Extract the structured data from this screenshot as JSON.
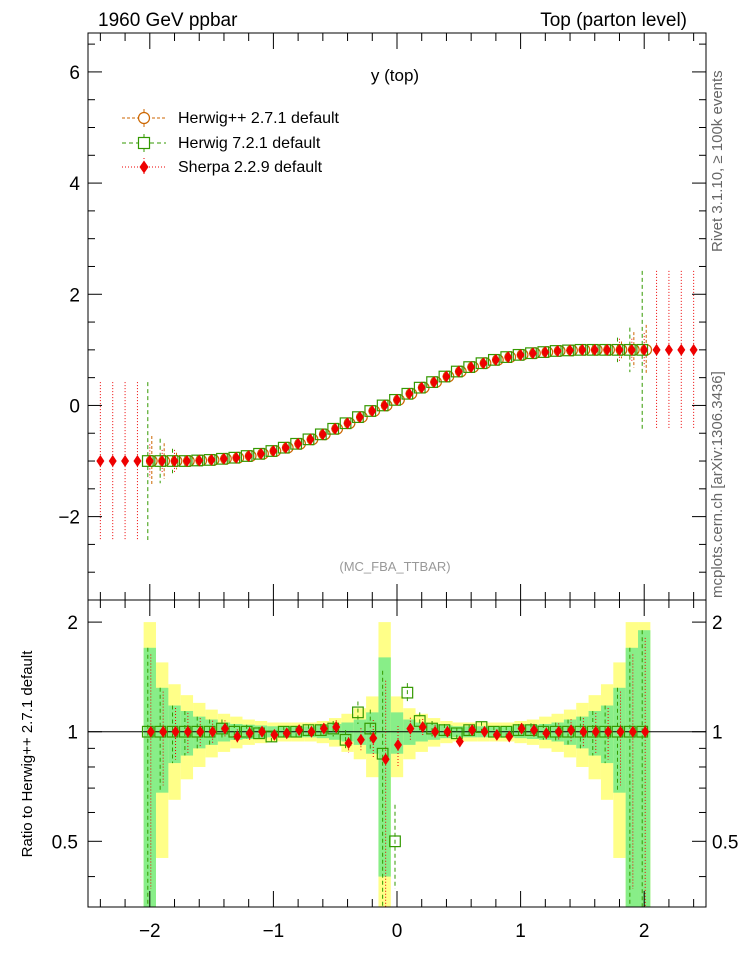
{
  "header": {
    "left": "1960 GeV ppbar",
    "right": "Top (parton level)"
  },
  "side": {
    "rivet": "Rivet 3.1.10, ≥ 100k events",
    "mcplots": "mcplots.cern.ch [arXiv:1306.3436]"
  },
  "chart_data": [
    {
      "type": "scatter",
      "title": "y (top)",
      "annotation": "(MC_FBA_TTBAR)",
      "xlabel": "",
      "ylabel": "",
      "xlim": [
        -2.5,
        2.5
      ],
      "ylim": [
        -3.5,
        6.7
      ],
      "xticks": [
        "−2",
        "−1",
        "0",
        "1",
        "2"
      ],
      "yticks": [
        "−2",
        "0",
        "2",
        "4",
        "6"
      ],
      "ytick_values": [
        -2,
        0,
        2,
        4,
        6
      ],
      "legend_position": "top-left",
      "series": [
        {
          "name": "Herwig++ 2.7.1 default",
          "marker": "open-circle",
          "color": "#cc6600",
          "x": [
            -2.0,
            -1.9,
            -1.8,
            -1.7,
            -1.6,
            -1.5,
            -1.4,
            -1.3,
            -1.2,
            -1.1,
            -1.0,
            -0.9,
            -0.8,
            -0.7,
            -0.6,
            -0.5,
            -0.4,
            -0.3,
            -0.2,
            -0.1,
            0.0,
            0.1,
            0.2,
            0.3,
            0.4,
            0.5,
            0.6,
            0.7,
            0.8,
            0.9,
            1.0,
            1.1,
            1.2,
            1.3,
            1.4,
            1.5,
            1.6,
            1.7,
            1.8,
            1.9,
            2.0
          ],
          "y": [
            -1.0,
            -1.0,
            -1.0,
            -1.0,
            -0.99,
            -0.98,
            -0.96,
            -0.94,
            -0.91,
            -0.87,
            -0.82,
            -0.76,
            -0.69,
            -0.61,
            -0.52,
            -0.42,
            -0.32,
            -0.21,
            -0.1,
            0.0,
            0.1,
            0.21,
            0.32,
            0.42,
            0.52,
            0.61,
            0.69,
            0.76,
            0.82,
            0.87,
            0.91,
            0.94,
            0.96,
            0.98,
            0.99,
            1.0,
            1.0,
            1.0,
            1.0,
            1.0,
            1.0
          ]
        },
        {
          "name": "Herwig 7.2.1 default",
          "marker": "open-square",
          "color": "#339900",
          "x": [
            -2.0,
            -1.9,
            -1.8,
            -1.7,
            -1.6,
            -1.5,
            -1.4,
            -1.3,
            -1.2,
            -1.1,
            -1.0,
            -0.9,
            -0.8,
            -0.7,
            -0.6,
            -0.5,
            -0.4,
            -0.3,
            -0.2,
            -0.1,
            0.0,
            0.1,
            0.2,
            0.3,
            0.4,
            0.5,
            0.6,
            0.7,
            0.8,
            0.9,
            1.0,
            1.1,
            1.2,
            1.3,
            1.4,
            1.5,
            1.6,
            1.7,
            1.8,
            1.9,
            2.0
          ],
          "y": [
            -1.0,
            -1.0,
            -1.0,
            -1.0,
            -0.99,
            -0.98,
            -0.96,
            -0.94,
            -0.91,
            -0.87,
            -0.82,
            -0.76,
            -0.69,
            -0.61,
            -0.52,
            -0.42,
            -0.32,
            -0.21,
            -0.1,
            0.0,
            0.1,
            0.21,
            0.32,
            0.42,
            0.52,
            0.61,
            0.69,
            0.76,
            0.82,
            0.87,
            0.91,
            0.94,
            0.96,
            0.98,
            0.99,
            1.0,
            1.0,
            1.0,
            1.0,
            1.0,
            1.0
          ]
        },
        {
          "name": "Sherpa 2.2.9 default",
          "marker": "filled-diamond",
          "color": "#ee0000",
          "x": [
            -2.4,
            -2.3,
            -2.2,
            -2.1,
            -2.0,
            -1.9,
            -1.8,
            -1.7,
            -1.6,
            -1.5,
            -1.4,
            -1.3,
            -1.2,
            -1.1,
            -1.0,
            -0.9,
            -0.8,
            -0.7,
            -0.6,
            -0.5,
            -0.4,
            -0.3,
            -0.2,
            -0.1,
            0.0,
            0.1,
            0.2,
            0.3,
            0.4,
            0.5,
            0.6,
            0.7,
            0.8,
            0.9,
            1.0,
            1.1,
            1.2,
            1.3,
            1.4,
            1.5,
            1.6,
            1.7,
            1.8,
            1.9,
            2.0,
            2.1,
            2.2,
            2.3,
            2.4
          ],
          "y": [
            -1.0,
            -1.0,
            -1.0,
            -1.0,
            -1.0,
            -1.0,
            -1.0,
            -1.0,
            -0.99,
            -0.98,
            -0.96,
            -0.94,
            -0.91,
            -0.87,
            -0.82,
            -0.76,
            -0.69,
            -0.61,
            -0.52,
            -0.42,
            -0.32,
            -0.21,
            -0.1,
            0.0,
            0.1,
            0.21,
            0.32,
            0.42,
            0.52,
            0.61,
            0.69,
            0.76,
            0.82,
            0.87,
            0.91,
            0.94,
            0.96,
            0.98,
            0.99,
            1.0,
            1.0,
            1.0,
            1.0,
            1.0,
            1.0,
            1.0,
            1.0,
            1.0,
            1.0
          ]
        }
      ]
    },
    {
      "type": "scatter",
      "title": "",
      "ylabel": "Ratio to Herwig++ 2.7.1 default",
      "xlim": [
        -2.5,
        2.5
      ],
      "ylim": [
        0.33,
        2.3
      ],
      "xticks": [
        "−2",
        "−1",
        "0",
        "1",
        "2"
      ],
      "xtick_values": [
        -2,
        -1,
        0,
        1,
        2
      ],
      "yticks": [
        "0.5",
        "1",
        "2"
      ],
      "ytick_values": [
        0.5,
        1,
        2
      ],
      "reference_line": 1,
      "band_x": [
        -2.0,
        -1.9,
        -1.8,
        -1.7,
        -1.6,
        -1.5,
        -1.4,
        -1.3,
        -1.2,
        -1.1,
        -1.0,
        -0.9,
        -0.8,
        -0.7,
        -0.6,
        -0.5,
        -0.4,
        -0.3,
        -0.2,
        -0.1,
        0.0,
        0.1,
        0.2,
        0.3,
        0.4,
        0.5,
        0.6,
        0.7,
        0.8,
        0.9,
        1.0,
        1.1,
        1.2,
        1.3,
        1.4,
        1.5,
        1.6,
        1.7,
        1.8,
        1.9,
        2.0
      ],
      "band_width": 0.1,
      "band_green_halfwidth": [
        0.7,
        0.32,
        0.18,
        0.14,
        0.1,
        0.08,
        0.06,
        0.05,
        0.045,
        0.04,
        0.035,
        0.035,
        0.035,
        0.035,
        0.04,
        0.05,
        0.06,
        0.08,
        0.13,
        0.6,
        0.13,
        0.08,
        0.06,
        0.05,
        0.04,
        0.035,
        0.035,
        0.035,
        0.035,
        0.035,
        0.04,
        0.045,
        0.05,
        0.06,
        0.08,
        0.1,
        0.14,
        0.18,
        0.32,
        0.7,
        0.9
      ],
      "band_yellow_halfwidth": [
        1.0,
        0.55,
        0.35,
        0.26,
        0.2,
        0.15,
        0.12,
        0.1,
        0.08,
        0.07,
        0.06,
        0.06,
        0.06,
        0.06,
        0.07,
        0.09,
        0.12,
        0.16,
        0.25,
        1.0,
        0.25,
        0.16,
        0.12,
        0.09,
        0.07,
        0.06,
        0.06,
        0.06,
        0.06,
        0.06,
        0.07,
        0.08,
        0.1,
        0.12,
        0.15,
        0.2,
        0.26,
        0.35,
        0.55,
        1.0,
        1.0
      ],
      "series": [
        {
          "name": "Herwig 7.2.1 default",
          "marker": "open-square",
          "x": [
            -2.0,
            -1.9,
            -1.8,
            -1.7,
            -1.6,
            -1.5,
            -1.4,
            -1.3,
            -1.2,
            -1.1,
            -1.0,
            -0.9,
            -0.8,
            -0.7,
            -0.6,
            -0.5,
            -0.4,
            -0.3,
            -0.2,
            -0.1,
            0.0,
            0.1,
            0.2,
            0.3,
            0.4,
            0.5,
            0.6,
            0.7,
            0.8,
            0.9,
            1.0,
            1.1,
            1.2,
            1.3,
            1.4,
            1.5,
            1.6,
            1.7,
            1.8,
            1.9,
            2.0
          ],
          "y": [
            1.0,
            1.0,
            1.0,
            1.0,
            1.0,
            1.0,
            1.02,
            1.0,
            1.0,
            0.99,
            0.97,
            1.0,
            1.0,
            1.01,
            1.01,
            1.02,
            0.95,
            1.13,
            1.02,
            0.87,
            0.5,
            1.28,
            1.07,
            1.02,
            1.01,
            0.99,
            1.01,
            1.03,
            1.0,
            1.0,
            1.01,
            1.01,
            1.0,
            1.0,
            1.0,
            1.0,
            1.0,
            1.0,
            1.0,
            1.0,
            1.0
          ]
        },
        {
          "name": "Sherpa 2.2.9 default",
          "marker": "filled-diamond",
          "x": [
            -2.0,
            -1.9,
            -1.8,
            -1.7,
            -1.6,
            -1.5,
            -1.4,
            -1.3,
            -1.2,
            -1.1,
            -1.0,
            -0.9,
            -0.8,
            -0.7,
            -0.6,
            -0.5,
            -0.4,
            -0.3,
            -0.2,
            -0.1,
            0.0,
            0.1,
            0.2,
            0.3,
            0.4,
            0.5,
            0.6,
            0.7,
            0.8,
            0.9,
            1.0,
            1.1,
            1.2,
            1.3,
            1.4,
            1.5,
            1.6,
            1.7,
            1.8,
            1.9,
            2.0
          ],
          "y": [
            1.0,
            1.0,
            1.0,
            1.0,
            1.0,
            1.0,
            1.02,
            0.97,
            0.99,
            1.0,
            0.98,
            0.99,
            1.01,
            1.0,
            1.02,
            1.03,
            0.93,
            0.95,
            0.96,
            0.84,
            0.92,
            1.02,
            1.03,
            1.0,
            1.0,
            0.94,
            1.01,
            1.0,
            0.98,
            0.97,
            1.02,
            1.01,
            0.99,
            1.0,
            1.01,
            1.0,
            1.0,
            1.0,
            1.0,
            1.0,
            1.0
          ]
        }
      ]
    }
  ]
}
